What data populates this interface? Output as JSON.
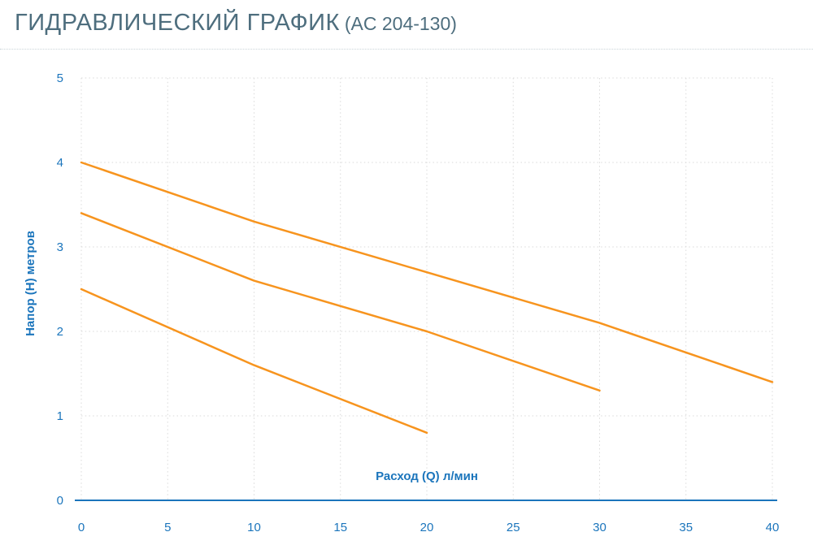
{
  "header": {
    "title": "ГИДРАВЛИЧЕСКИЙ ГРАФИК",
    "model": "(AC 204-130)"
  },
  "chart_data": {
    "type": "line",
    "title": "ГИДРАВЛИЧЕСКИЙ ГРАФИК (AC 204-130)",
    "xlabel": "Расход (Q) л/мин",
    "ylabel": "Напор (H) метров",
    "xlim": [
      0,
      40
    ],
    "ylim": [
      0,
      5
    ],
    "x_ticks": [
      0,
      5,
      10,
      15,
      20,
      25,
      30,
      35,
      40
    ],
    "y_ticks": [
      0,
      1,
      2,
      3,
      4,
      5
    ],
    "grid": true,
    "legend": "none",
    "series": [
      {
        "points": [
          [
            0,
            4.0
          ],
          [
            10,
            3.3
          ],
          [
            20,
            2.7
          ],
          [
            30,
            2.1
          ],
          [
            40,
            1.4
          ]
        ]
      },
      {
        "points": [
          [
            0,
            3.4
          ],
          [
            10,
            2.6
          ],
          [
            15,
            2.3
          ],
          [
            20,
            2.0
          ],
          [
            30,
            1.3
          ]
        ]
      },
      {
        "points": [
          [
            0,
            2.5
          ],
          [
            10,
            1.6
          ],
          [
            20,
            0.8
          ]
        ]
      }
    ],
    "colors": {
      "line": "#f7941e",
      "axis_text": "#1b75bc",
      "grid": "#dadada",
      "title": "#4e6e7e"
    }
  }
}
